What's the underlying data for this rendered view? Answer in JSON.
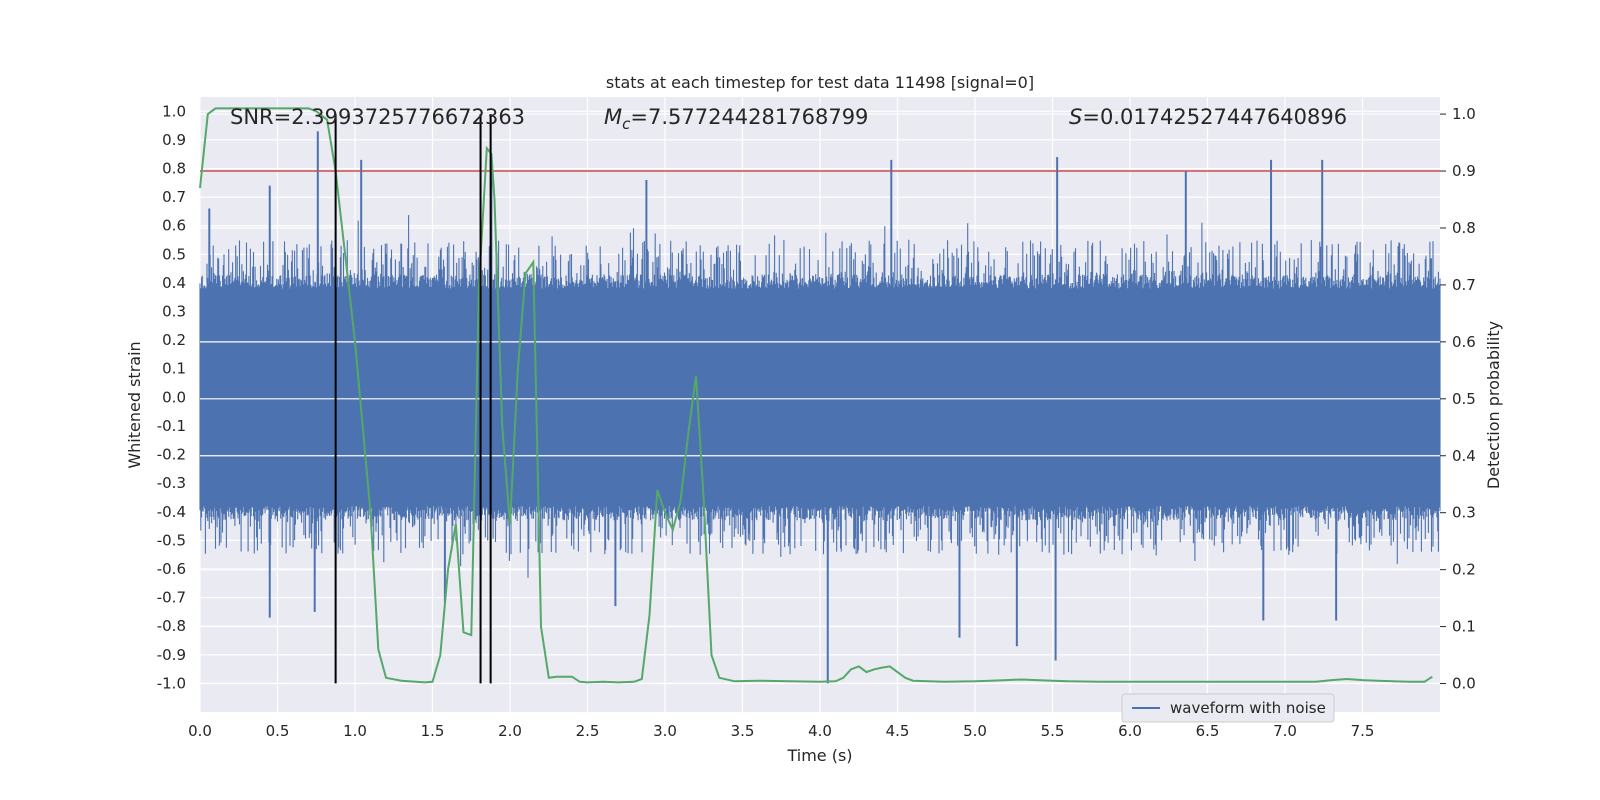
{
  "chart_data": {
    "type": "line",
    "title": "stats at each timestep for test data 11498 [signal=0]",
    "xlabel": "Time (s)",
    "ylabel": "Whitened strain",
    "y2label": "Detection probability",
    "xlim": [
      0.0,
      8.0
    ],
    "ylim": [
      -1.1,
      1.05
    ],
    "y2lim": [
      -0.05,
      1.03
    ],
    "xticks": [
      "0.0",
      "0.5",
      "1.0",
      "1.5",
      "2.0",
      "2.5",
      "3.0",
      "3.5",
      "4.0",
      "4.5",
      "5.0",
      "5.5",
      "6.0",
      "6.5",
      "7.0",
      "7.5"
    ],
    "xtick_values": [
      0.0,
      0.5,
      1.0,
      1.5,
      2.0,
      2.5,
      3.0,
      3.5,
      4.0,
      4.5,
      5.0,
      5.5,
      6.0,
      6.5,
      7.0,
      7.5
    ],
    "yticks": [
      "1.0",
      "0.9",
      "0.8",
      "0.7",
      "0.6",
      "0.5",
      "0.4",
      "0.3",
      "0.2",
      "0.1",
      "0.0",
      "-0.1",
      "-0.2",
      "-0.3",
      "-0.4",
      "-0.5",
      "-0.6",
      "-0.7",
      "-0.8",
      "-0.9",
      "-1.0"
    ],
    "ytick_values": [
      1.0,
      0.9,
      0.8,
      0.7,
      0.6,
      0.5,
      0.4,
      0.3,
      0.2,
      0.1,
      0.0,
      -0.1,
      -0.2,
      -0.3,
      -0.4,
      -0.5,
      -0.6,
      -0.7,
      -0.8,
      -0.9,
      -1.0
    ],
    "y2ticks": [
      "1.0",
      "0.9",
      "0.8",
      "0.7",
      "0.6",
      "0.5",
      "0.4",
      "0.3",
      "0.2",
      "0.1",
      "0.0"
    ],
    "y2tick_values": [
      1.0,
      0.9,
      0.8,
      0.7,
      0.6,
      0.5,
      0.4,
      0.3,
      0.2,
      0.1,
      0.0
    ],
    "annotations": {
      "snr": "SNR=2.3993725776672363",
      "mc_symbol": "M",
      "mc_sub": "c",
      "mc_value": "=7.577244281768799",
      "s_symbol": "S",
      "s_value": "=0.01742527447640896"
    },
    "threshold": 0.9,
    "vertical_lines": [
      0.875,
      1.81,
      1.875
    ],
    "legend": {
      "label": "waveform with noise",
      "position": "lower-right"
    },
    "series": [
      {
        "name": "waveform with noise",
        "axis": "left",
        "color": "#4c72b0",
        "style": "dense-noise",
        "core_amplitude": 0.38,
        "typical_peak": 0.55,
        "spikes": [
          {
            "x": 0.06,
            "y": 0.66
          },
          {
            "x": 0.45,
            "y": 0.74
          },
          {
            "x": 0.76,
            "y": 0.93
          },
          {
            "x": 1.04,
            "y": 0.83
          },
          {
            "x": 1.88,
            "y": 0.8
          },
          {
            "x": 2.88,
            "y": 0.76
          },
          {
            "x": 4.46,
            "y": 0.83
          },
          {
            "x": 5.53,
            "y": 0.84
          },
          {
            "x": 6.36,
            "y": 0.79
          },
          {
            "x": 6.91,
            "y": 0.83
          },
          {
            "x": 7.24,
            "y": 0.83
          },
          {
            "x": 0.45,
            "y": -0.77
          },
          {
            "x": 0.74,
            "y": -0.75
          },
          {
            "x": 1.58,
            "y": -0.72
          },
          {
            "x": 2.68,
            "y": -0.73
          },
          {
            "x": 4.05,
            "y": -1.0
          },
          {
            "x": 5.27,
            "y": -0.87
          },
          {
            "x": 5.52,
            "y": -0.92
          },
          {
            "x": 6.86,
            "y": -0.78
          },
          {
            "x": 7.33,
            "y": -0.78
          },
          {
            "x": 4.9,
            "y": -0.84
          }
        ]
      },
      {
        "name": "detection probability",
        "axis": "right",
        "color": "#55a868",
        "x": [
          0.0,
          0.05,
          0.1,
          0.2,
          0.4,
          0.6,
          0.7,
          0.75,
          0.82,
          0.875,
          0.95,
          1.0,
          1.05,
          1.1,
          1.15,
          1.2,
          1.3,
          1.45,
          1.5,
          1.55,
          1.6,
          1.65,
          1.7,
          1.75,
          1.8,
          1.85,
          1.88,
          1.9,
          1.95,
          2.0,
          2.05,
          2.1,
          2.15,
          2.2,
          2.25,
          2.3,
          2.4,
          2.45,
          2.5,
          2.6,
          2.7,
          2.8,
          2.85,
          2.9,
          2.95,
          3.0,
          3.05,
          3.1,
          3.15,
          3.2,
          3.25,
          3.3,
          3.35,
          3.45,
          3.6,
          3.8,
          4.0,
          4.1,
          4.15,
          4.2,
          4.25,
          4.3,
          4.35,
          4.4,
          4.45,
          4.5,
          4.55,
          4.6,
          4.8,
          5.0,
          5.1,
          5.2,
          5.3,
          5.4,
          5.5,
          5.6,
          5.8,
          6.0,
          6.5,
          7.0,
          7.2,
          7.3,
          7.4,
          7.5,
          7.6,
          7.7,
          7.8,
          7.9,
          7.95
        ],
        "y": [
          0.87,
          1.0,
          1.01,
          1.01,
          1.01,
          1.01,
          1.01,
          1.005,
          0.99,
          0.9,
          0.72,
          0.6,
          0.45,
          0.3,
          0.06,
          0.01,
          0.005,
          0.002,
          0.003,
          0.05,
          0.2,
          0.28,
          0.09,
          0.085,
          0.7,
          0.94,
          0.93,
          0.85,
          0.45,
          0.28,
          0.55,
          0.72,
          0.74,
          0.1,
          0.01,
          0.012,
          0.012,
          0.003,
          0.002,
          0.003,
          0.002,
          0.003,
          0.008,
          0.12,
          0.34,
          0.3,
          0.27,
          0.32,
          0.44,
          0.54,
          0.32,
          0.05,
          0.01,
          0.004,
          0.005,
          0.004,
          0.003,
          0.004,
          0.01,
          0.025,
          0.03,
          0.02,
          0.025,
          0.028,
          0.03,
          0.02,
          0.01,
          0.005,
          0.003,
          0.004,
          0.005,
          0.006,
          0.007,
          0.006,
          0.005,
          0.004,
          0.003,
          0.003,
          0.003,
          0.003,
          0.003,
          0.006,
          0.008,
          0.006,
          0.005,
          0.004,
          0.003,
          0.003,
          0.012
        ]
      }
    ]
  }
}
